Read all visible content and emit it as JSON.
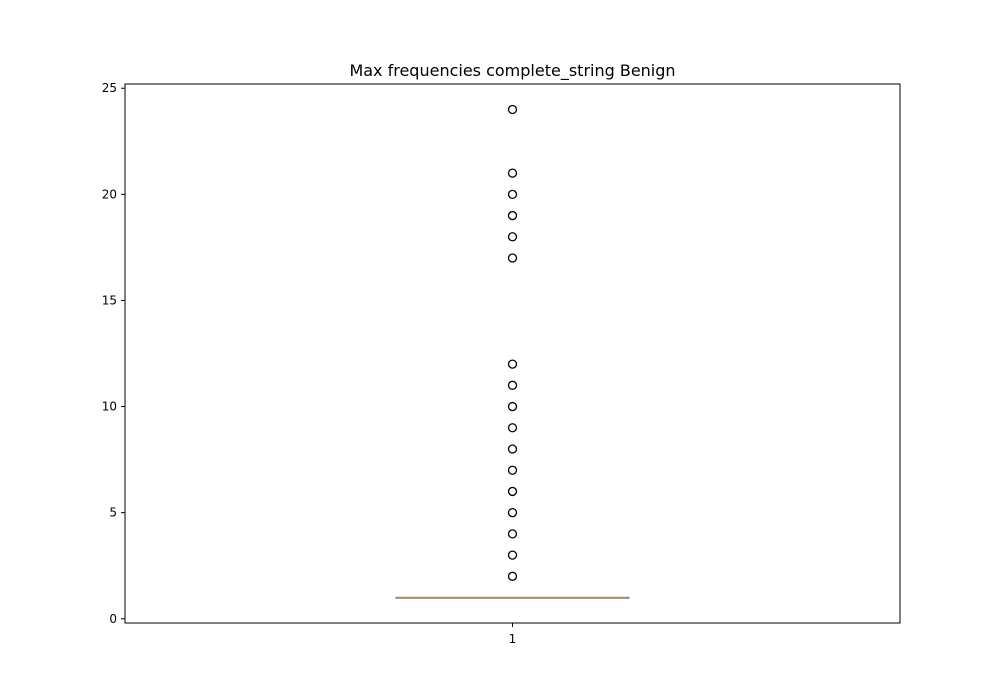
{
  "chart_data": {
    "type": "box",
    "title": "Max frequencies complete_string Benign",
    "xlabel": "",
    "ylabel": "",
    "categories": [
      "1"
    ],
    "ylim": [
      -0.2,
      25.2
    ],
    "yticks": [
      0,
      5,
      10,
      15,
      20,
      25
    ],
    "grid": false,
    "boxes": [
      {
        "category": "1",
        "min": 1,
        "q1": 1,
        "median": 1,
        "q3": 1,
        "max": 1,
        "outliers": [
          2,
          3,
          4,
          5,
          6,
          7,
          8,
          9,
          10,
          11,
          12,
          17,
          18,
          19,
          20,
          21,
          24
        ]
      }
    ],
    "colors": {
      "median": "#c8864a",
      "box": "#000000",
      "outlier": "#000000"
    }
  }
}
